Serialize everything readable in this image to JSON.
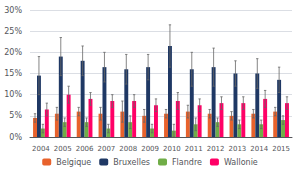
{
  "chart_data": {
    "type": "bar",
    "categories": [
      "2004",
      "2005",
      "2006",
      "2007",
      "2008",
      "2009",
      "2010",
      "2011",
      "2012",
      "2013",
      "2014",
      "2015"
    ],
    "series": [
      {
        "name": "Belgique",
        "color": "#e8622c",
        "values": [
          4.5,
          5.5,
          6.0,
          5.5,
          6.0,
          5.0,
          5.5,
          6.0,
          5.5,
          5.0,
          5.5,
          6.0
        ],
        "errors": [
          1.0,
          1.5,
          1.0,
          1.5,
          2.5,
          1.5,
          1.0,
          1.5,
          1.0,
          1.0,
          1.0,
          1.0
        ]
      },
      {
        "name": "Bruxelles",
        "color": "#1f3864",
        "values": [
          14.5,
          19.0,
          18.0,
          16.5,
          16.0,
          16.5,
          21.5,
          16.0,
          16.5,
          15.0,
          15.0,
          13.5
        ],
        "errors": [
          4.5,
          4.5,
          3.5,
          3.5,
          3.5,
          3.0,
          5.0,
          4.0,
          4.5,
          3.0,
          3.5,
          3.0
        ]
      },
      {
        "name": "Flandre",
        "color": "#70ad47",
        "values": [
          2.0,
          3.5,
          3.5,
          2.0,
          3.5,
          2.0,
          1.5,
          3.0,
          3.5,
          3.0,
          3.0,
          4.0
        ],
        "errors": [
          1.0,
          1.0,
          1.0,
          1.0,
          1.5,
          1.0,
          1.5,
          1.5,
          1.0,
          1.0,
          1.0,
          1.0
        ]
      },
      {
        "name": "Wallonie",
        "color": "#ff0066",
        "values": [
          6.5,
          10.0,
          9.0,
          8.5,
          8.5,
          7.5,
          8.5,
          7.5,
          8.0,
          8.0,
          9.0,
          8.0
        ],
        "errors": [
          1.5,
          2.0,
          1.5,
          1.5,
          1.5,
          1.5,
          2.0,
          1.5,
          1.5,
          1.5,
          2.0,
          1.5
        ]
      }
    ],
    "ylim": [
      0,
      30
    ],
    "yticks": [
      {
        "value": 0,
        "label": "0%"
      },
      {
        "value": 5,
        "label": "5%"
      },
      {
        "value": 10,
        "label": "10%"
      },
      {
        "value": 15,
        "label": "15%"
      },
      {
        "value": 20,
        "label": "20%"
      },
      {
        "value": 25,
        "label": "25%"
      },
      {
        "value": 30,
        "label": "30%"
      }
    ],
    "grid": true,
    "legend": "bottom"
  }
}
